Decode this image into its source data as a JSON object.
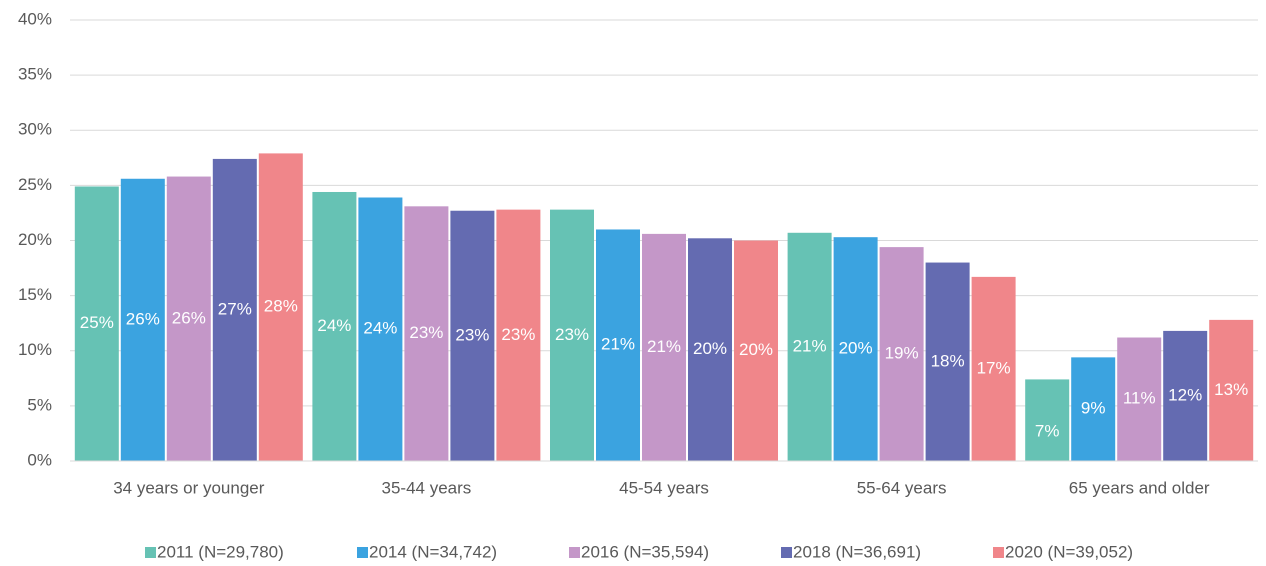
{
  "chart_data": {
    "type": "bar",
    "categories": [
      "34 years or younger",
      "35-44 years",
      "45-54 years",
      "55-64 years",
      "65 years and older"
    ],
    "series": [
      {
        "name": "2011 (N=29,780)",
        "color": "#66c2b4",
        "values": [
          24.9,
          24.4,
          22.8,
          20.7,
          7.4
        ],
        "value_labels": [
          "25%",
          "24%",
          "23%",
          "21%",
          "7%"
        ]
      },
      {
        "name": "2014 (N=34,742)",
        "color": "#3ba3e0",
        "values": [
          25.6,
          23.9,
          21.0,
          20.3,
          9.4
        ],
        "value_labels": [
          "26%",
          "24%",
          "21%",
          "20%",
          "9%"
        ]
      },
      {
        "name": "2016 (N=35,594)",
        "color": "#c497c8",
        "values": [
          25.8,
          23.1,
          20.6,
          19.4,
          11.2
        ],
        "value_labels": [
          "26%",
          "23%",
          "21%",
          "19%",
          "11%"
        ]
      },
      {
        "name": "2018 (N=36,691)",
        "color": "#646bb1",
        "values": [
          27.4,
          22.7,
          20.2,
          18.0,
          11.8
        ],
        "value_labels": [
          "27%",
          "23%",
          "20%",
          "18%",
          "12%"
        ]
      },
      {
        "name": "2020 (N=39,052)",
        "color": "#f0868a",
        "values": [
          27.9,
          22.8,
          20.0,
          16.7,
          12.8
        ],
        "value_labels": [
          "28%",
          "23%",
          "20%",
          "17%",
          "13%"
        ]
      }
    ],
    "ylim": [
      0,
      40
    ],
    "yticks": [
      {
        "value": 0,
        "label": "0%"
      },
      {
        "value": 5,
        "label": "5%"
      },
      {
        "value": 10,
        "label": "10%"
      },
      {
        "value": 15,
        "label": "15%"
      },
      {
        "value": 20,
        "label": "20%"
      },
      {
        "value": 25,
        "label": "25%"
      },
      {
        "value": 30,
        "label": "30%"
      },
      {
        "value": 35,
        "label": "35%"
      },
      {
        "value": 40,
        "label": "40%"
      }
    ],
    "grid": true,
    "legend": "bottom"
  }
}
